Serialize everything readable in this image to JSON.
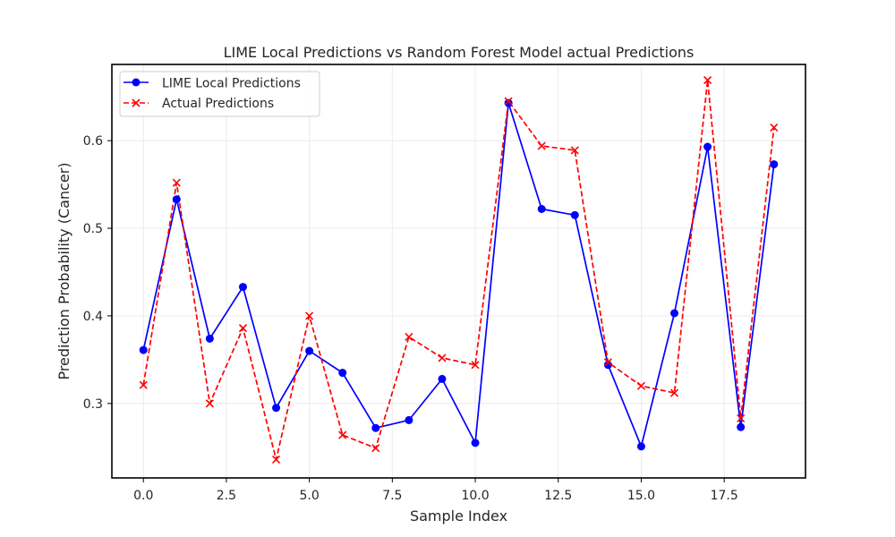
{
  "chart_data": {
    "type": "line",
    "title": "LIME Local Predictions vs Random Forest Model actual Predictions",
    "xlabel": "Sample Index",
    "ylabel": "Prediction Probability (Cancer)",
    "xlim": [
      -0.95,
      19.95
    ],
    "ylim": [
      0.215,
      0.687
    ],
    "xticks": [
      0.0,
      2.5,
      5.0,
      7.5,
      10.0,
      12.5,
      15.0,
      17.5
    ],
    "xtick_labels": [
      "0.0",
      "2.5",
      "5.0",
      "7.5",
      "10.0",
      "12.5",
      "15.0",
      "17.5"
    ],
    "yticks": [
      0.3,
      0.4,
      0.5,
      0.6
    ],
    "ytick_labels": [
      "0.3",
      "0.4",
      "0.5",
      "0.6"
    ],
    "grid": true,
    "legend_position": "top-left",
    "x": [
      0,
      1,
      2,
      3,
      4,
      5,
      6,
      7,
      8,
      9,
      10,
      11,
      12,
      13,
      14,
      15,
      16,
      17,
      18,
      19
    ],
    "series": [
      {
        "name": "LIME Local Predictions",
        "color": "#0000ff",
        "linestyle": "solid",
        "marker": "circle",
        "values": [
          0.361,
          0.533,
          0.374,
          0.433,
          0.295,
          0.36,
          0.335,
          0.272,
          0.281,
          0.328,
          0.255,
          0.643,
          0.522,
          0.515,
          0.344,
          0.251,
          0.403,
          0.593,
          0.273,
          0.573
        ]
      },
      {
        "name": "Actual Predictions",
        "color": "#ff0000",
        "linestyle": "dashed",
        "marker": "x",
        "values": [
          0.321,
          0.552,
          0.3,
          0.386,
          0.236,
          0.4,
          0.264,
          0.249,
          0.376,
          0.352,
          0.344,
          0.645,
          0.594,
          0.589,
          0.347,
          0.32,
          0.312,
          0.669,
          0.283,
          0.615
        ]
      }
    ]
  }
}
